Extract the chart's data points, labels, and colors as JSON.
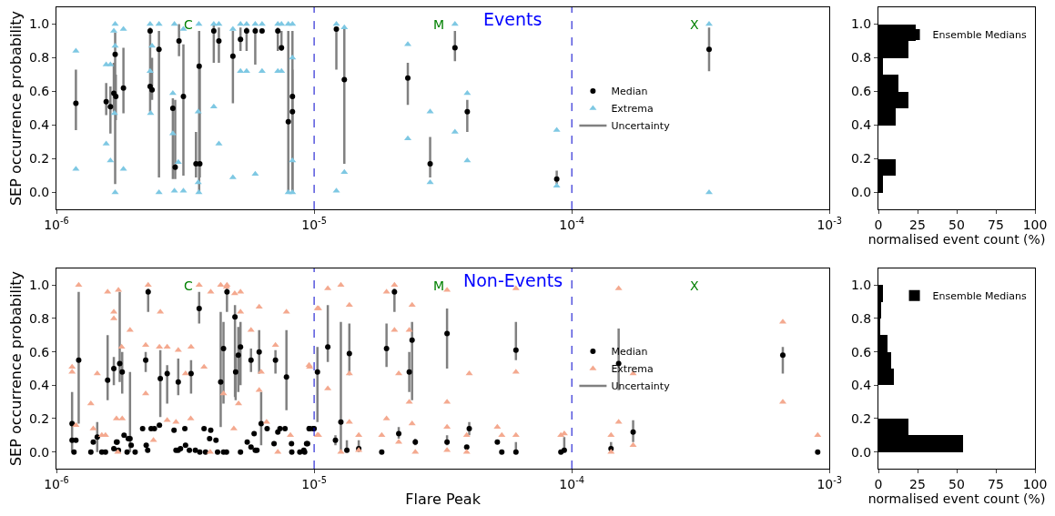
{
  "chart_data": [
    {
      "type": "scatter",
      "title": "Events",
      "ylabel": "SEP occurrence probability",
      "xlim": [
        1e-06,
        0.001
      ],
      "xticks": [
        {
          "value": 1e-06,
          "label": "10$^{-6}$"
        },
        {
          "value": 1e-05,
          "label": "10$^{-5}$"
        },
        {
          "value": 0.0001,
          "label": "10$^{-4}$"
        },
        {
          "value": 0.001,
          "label": "10$^{-3}$"
        }
      ],
      "log": "x",
      "ylim": [
        -0.1,
        1.1
      ],
      "yticks": [
        {
          "value": 0,
          "label": "0.0"
        },
        {
          "value": 0.2,
          "label": "0.2"
        },
        {
          "value": 0.4,
          "label": "0.4"
        },
        {
          "value": 0.6,
          "label": "0.6"
        },
        {
          "value": 0.8,
          "label": "0.8"
        },
        {
          "value": 1,
          "label": "1.0"
        }
      ],
      "legend": "right",
      "ref_lines": [
        {
          "axis": "x",
          "value": 1e-05,
          "color": "#0000cc",
          "line_style": "dashed"
        },
        {
          "axis": "x",
          "value": 0.0001,
          "color": "#0000cc",
          "line_style": "dashed"
        }
      ],
      "annotations": [
        "C",
        "M",
        "X"
      ],
      "series": [
        {
          "name": "Median",
          "color": "#000000",
          "marker": "circle",
          "x": [
            1.19e-06,
            1.56e-06,
            1.62e-06,
            1.67e-06,
            1.69e-06,
            1.7e-06,
            1.82e-06,
            2.31e-06,
            2.31e-06,
            2.35e-06,
            2.5e-06,
            2.83e-06,
            2.89e-06,
            2.99e-06,
            3.11e-06,
            3.48e-06,
            3.6e-06,
            3.58e-06,
            4.08e-06,
            4.27e-06,
            4.84e-06,
            5.18e-06,
            5.47e-06,
            5.91e-06,
            6.28e-06,
            7.23e-06,
            7.47e-06,
            7.94e-06,
            8.24e-06,
            8.24e-06,
            1.22e-05,
            1.31e-05,
            2.31e-05,
            2.82e-05,
            3.52e-05,
            3.93e-05,
            8.74e-05,
            0.000341
          ],
          "values": [
            0.53,
            0.54,
            0.51,
            0.59,
            0.82,
            0.57,
            0.62,
            0.96,
            0.63,
            0.61,
            0.85,
            0.5,
            0.15,
            0.9,
            0.57,
            0.17,
            0.17,
            0.75,
            0.96,
            0.9,
            0.81,
            0.91,
            0.96,
            0.96,
            0.96,
            0.96,
            0.86,
            0.42,
            0.57,
            0.48,
            0.97,
            0.67,
            0.68,
            0.17,
            0.86,
            0.48,
            0.08,
            0.85
          ],
          "errors": [
            [
              0.37,
              0.73
            ],
            [
              0.46,
              0.65
            ],
            [
              0.35,
              0.63
            ],
            [
              0.48,
              0.77
            ],
            [
              0.05,
              0.95
            ],
            [
              0.43,
              0.7
            ],
            [
              0.47,
              0.86
            ],
            [
              0.83,
              0.98
            ],
            [
              0.48,
              0.83
            ],
            [
              0.55,
              0.8
            ],
            [
              0.09,
              0.96
            ],
            [
              0.08,
              0.56
            ],
            [
              0.08,
              0.55
            ],
            [
              0.81,
              1.0
            ],
            [
              0.1,
              0.88
            ],
            [
              0.09,
              0.36
            ],
            [
              0.09,
              0.75
            ],
            [
              0.0,
              0.96
            ],
            [
              0.77,
              1.0
            ],
            [
              0.77,
              0.98
            ],
            [
              0.53,
              0.96
            ],
            [
              0.84,
              0.98
            ],
            [
              0.84,
              0.98
            ],
            [
              0.76,
              0.98
            ],
            null,
            [
              0.84,
              0.98
            ],
            [
              0.84,
              0.96
            ],
            [
              0.0,
              0.96
            ],
            [
              0.0,
              0.73
            ],
            [
              0.0,
              0.96
            ],
            [
              0.73,
              0.98
            ],
            [
              0.17,
              0.98
            ],
            [
              0.52,
              0.77
            ],
            [
              0.09,
              0.33
            ],
            [
              0.78,
              0.96
            ],
            [
              0.36,
              0.55
            ],
            [
              0.05,
              0.13
            ],
            [
              0.72,
              0.98
            ]
          ]
        },
        {
          "name": "Extrema",
          "color": "#7ec8e3",
          "marker": "triangle",
          "x": [
            1.19e-06,
            1.19e-06,
            1.56e-06,
            1.56e-06,
            1.62e-06,
            1.62e-06,
            1.69e-06,
            1.67e-06,
            1.69e-06,
            1.68e-06,
            1.69e-06,
            1.82e-06,
            1.82e-06,
            2.31e-06,
            2.35e-06,
            2.31e-06,
            2.32e-06,
            2.5e-06,
            2.5e-06,
            2.83e-06,
            2.83e-06,
            2.87e-06,
            2.97e-06,
            2.87e-06,
            3.11e-06,
            3.11e-06,
            3.57e-06,
            3.55e-06,
            3.55e-06,
            3.57e-06,
            4.08e-06,
            4.08e-06,
            4.27e-06,
            4.27e-06,
            4.84e-06,
            4.84e-06,
            5.18e-06,
            5.18e-06,
            5.47e-06,
            5.47e-06,
            5.91e-06,
            5.91e-06,
            6.28e-06,
            6.28e-06,
            7.23e-06,
            7.47e-06,
            7.23e-06,
            7.47e-06,
            7.94e-06,
            8.24e-06,
            8.24e-06,
            8.24e-06,
            7.94e-06,
            8.24e-06,
            1.22e-05,
            1.22e-05,
            1.31e-05,
            1.31e-05,
            2.31e-05,
            2.31e-05,
            2.82e-05,
            2.82e-05,
            3.52e-05,
            3.52e-05,
            3.93e-05,
            3.93e-05,
            8.74e-05,
            8.74e-05,
            0.000341,
            0.000341
          ],
          "values": [
            0.84,
            0.14,
            0.76,
            0.29,
            0.76,
            0.19,
            1.0,
            0.96,
            0.87,
            0.47,
            0.0,
            0.97,
            0.14,
            1.0,
            0.87,
            0.72,
            0.47,
            1.0,
            0.0,
            0.59,
            0.35,
            1.0,
            0.18,
            0.01,
            0.97,
            0.01,
            1.0,
            0.48,
            0.06,
            0.0,
            1.0,
            0.51,
            1.0,
            0.29,
            0.97,
            0.09,
            1.0,
            0.72,
            1.0,
            0.72,
            1.0,
            0.11,
            1.0,
            0.72,
            1.0,
            1.0,
            0.72,
            0.72,
            1.0,
            1.0,
            0.8,
            0.19,
            0.0,
            0.0,
            1.0,
            0.01,
            0.98,
            0.12,
            0.88,
            0.32,
            0.48,
            0.06,
            1.0,
            0.36,
            0.59,
            0.19,
            0.37,
            0.04,
            1.0,
            0.0
          ]
        },
        {
          "name": "Uncertainty",
          "type": "line",
          "color": "#808080"
        }
      ]
    },
    {
      "type": "histogram",
      "orientation": "horizontal",
      "xlabel": "normalised event count (%)",
      "bins": [
        0,
        0.1,
        0.2,
        0.3,
        0.4,
        0.5,
        0.6,
        0.7,
        0.8,
        0.9,
        1.0
      ],
      "xlim": [
        0,
        100
      ],
      "xticks": [
        0,
        25,
        50,
        75,
        100
      ],
      "ylim": [
        -0.1,
        1.1
      ],
      "yticks": [
        {
          "value": 0,
          "label": "0.0"
        },
        {
          "value": 0.2,
          "label": "0.2"
        },
        {
          "value": 0.4,
          "label": "0.4"
        },
        {
          "value": 0.6,
          "label": "0.6"
        },
        {
          "value": 0.8,
          "label": "0.8"
        },
        {
          "value": 1,
          "label": "1.0"
        }
      ],
      "legend": "top right",
      "series": [
        {
          "name": "Ensemble Medians",
          "color": "#000000",
          "values": [
            3,
            11,
            0,
            0,
            11,
            19,
            13,
            3,
            19,
            24
          ]
        }
      ]
    },
    {
      "type": "scatter",
      "title": "Non-Events",
      "ylabel": "SEP occurrence probability",
      "xlabel": "Flare Peak",
      "xlim": [
        1e-06,
        0.001
      ],
      "xticks": [
        {
          "value": 1e-06,
          "label": "10$^{-6}$"
        },
        {
          "value": 1e-05,
          "label": "10$^{-5}$"
        },
        {
          "value": 0.0001,
          "label": "10$^{-4}$"
        },
        {
          "value": 0.001,
          "label": "10$^{-3}$"
        }
      ],
      "log": "x",
      "ylim": [
        -0.1,
        1.1
      ],
      "yticks": [
        {
          "value": 0,
          "label": "0.0"
        },
        {
          "value": 0.2,
          "label": "0.2"
        },
        {
          "value": 0.4,
          "label": "0.4"
        },
        {
          "value": 0.6,
          "label": "0.6"
        },
        {
          "value": 0.8,
          "label": "0.8"
        },
        {
          "value": 1,
          "label": "1.0"
        }
      ],
      "legend": "right",
      "ref_lines": [
        {
          "axis": "x",
          "value": 1e-05,
          "color": "#0000cc",
          "line_style": "dashed"
        },
        {
          "axis": "x",
          "value": 0.0001,
          "color": "#0000cc",
          "line_style": "dashed"
        }
      ],
      "annotations": [
        "C",
        "M",
        "X"
      ],
      "series": [
        {
          "name": "Median",
          "color": "#000000",
          "marker": "circle",
          "x": [
            1.15e-06,
            1.15e-06,
            1.19e-06,
            1.17e-06,
            1.22e-06,
            1.36e-06,
            1.39e-06,
            1.44e-06,
            1.5e-06,
            1.55e-06,
            1.58e-06,
            1.67e-06,
            1.67e-06,
            1.71e-06,
            1.72e-06,
            1.74e-06,
            1.76e-06,
            1.8e-06,
            1.83e-06,
            1.9e-06,
            1.95e-06,
            1.88e-06,
            2.02e-06,
            1.93e-06,
            2.16e-06,
            2.22e-06,
            2.23e-06,
            2.26e-06,
            2.27e-06,
            2.33e-06,
            2.4e-06,
            2.51e-06,
            2.53e-06,
            2.69e-06,
            2.86e-06,
            2.91e-06,
            2.97e-06,
            3.03e-06,
            3.15e-06,
            3.17e-06,
            2.97e-06,
            3.28e-06,
            3.46e-06,
            3.6e-06,
            3.33e-06,
            3.58e-06,
            3.74e-06,
            3.79e-06,
            3.93e-06,
            3.97e-06,
            4.16e-06,
            4.22e-06,
            4.45e-06,
            4.57e-06,
            4.34e-06,
            4.45e-06,
            4.59e-06,
            4.93e-06,
            4.96e-06,
            5.08e-06,
            5.18e-06,
            5.18e-06,
            5.5e-06,
            5.69e-06,
            5.85e-06,
            5.91e-06,
            6e-06,
            5.69e-06,
            6.12e-06,
            6.23e-06,
            6.57e-06,
            6.99e-06,
            7.23e-06,
            7.37e-06,
            7.71e-06,
            8.17e-06,
            8.19e-06,
            7.08e-06,
            7.81e-06,
            8.8e-06,
            9.19e-06,
            9.43e-06,
            9.61e-06,
            1e-05,
            9.12e-06,
            9.35e-06,
            9.56e-06,
            9.91e-06,
            1.03e-05,
            1.13e-05,
            1.21e-05,
            1.27e-05,
            1.34e-05,
            1.37e-05,
            1.49e-05,
            1.83e-05,
            1.91e-05,
            2.05e-05,
            2.13e-05,
            2.34e-05,
            2.4e-05,
            2.47e-05,
            3.28e-05,
            3.28e-05,
            3.91e-05,
            4e-05,
            5.14e-05,
            5.35e-05,
            6.07e-05,
            6.07e-05,
            9.07e-05,
            9.35e-05,
            0.000142,
            0.000152,
            0.000173,
            0.000659,
            0.0009
          ],
          "values": [
            0.17,
            0.07,
            0.07,
            0.0,
            0.55,
            0.0,
            0.06,
            0.09,
            0.0,
            0.0,
            0.43,
            0.5,
            0.02,
            0.06,
            0.06,
            0.01,
            0.53,
            0.48,
            0.1,
            0.08,
            0.04,
            0.0,
            0.0,
            0.08,
            0.14,
            0.55,
            0.04,
            0.01,
            0.96,
            0.14,
            0.14,
            0.16,
            0.44,
            0.47,
            0.13,
            0.01,
            0.01,
            0.02,
            0.14,
            0.04,
            0.42,
            0.01,
            0.01,
            0.0,
            0.47,
            0.86,
            0.14,
            0.0,
            0.08,
            0.13,
            0.07,
            0.0,
            0.0,
            0.0,
            0.42,
            0.62,
            0.96,
            0.81,
            0.48,
            0.58,
            0.63,
            0.0,
            0.06,
            0.03,
            0.11,
            0.01,
            0.01,
            0.55,
            0.6,
            0.17,
            0.14,
            0.05,
            0.12,
            0.14,
            0.14,
            0.05,
            0.0,
            0.55,
            0.45,
            0.0,
            0.0,
            0.05,
            0.14,
            0.14,
            0.01,
            0.05,
            0.14,
            0.14,
            0.48,
            0.63,
            0.07,
            0.18,
            0.01,
            0.59,
            0.02,
            0.0,
            0.62,
            0.96,
            0.11,
            0.48,
            0.67,
            0.06,
            0.71,
            0.06,
            0.03,
            0.14,
            0.06,
            0.0,
            0.61,
            0.0,
            0.0,
            0.01,
            0.02,
            0.53,
            0.12,
            0.58,
            0.0
          ],
          "errors": [
            [
              0.0,
              0.36
            ],
            null,
            null,
            null,
            [
              0.17,
              0.96
            ],
            null,
            null,
            [
              0.0,
              0.18
            ],
            null,
            null,
            [
              0.31,
              0.7
            ],
            [
              0.4,
              0.57
            ],
            null,
            null,
            null,
            null,
            [
              0.42,
              0.96
            ],
            [
              0.35,
              0.6
            ],
            null,
            null,
            null,
            null,
            null,
            [
              0.0,
              0.48
            ],
            null,
            [
              0.48,
              0.6
            ],
            null,
            null,
            [
              0.84,
              0.98
            ],
            null,
            null,
            null,
            [
              0.21,
              0.61
            ],
            [
              0.29,
              0.52
            ],
            null,
            null,
            null,
            null,
            null,
            null,
            [
              0.34,
              0.56
            ],
            null,
            null,
            null,
            [
              0.35,
              0.55
            ],
            [
              0.77,
              0.96
            ],
            null,
            null,
            null,
            null,
            null,
            null,
            null,
            null,
            [
              0.15,
              0.84
            ],
            [
              0.29,
              0.78
            ],
            [
              0.84,
              0.98
            ],
            [
              0.33,
              0.88
            ],
            [
              0.31,
              0.58
            ],
            [
              0.36,
              0.75
            ],
            [
              0.4,
              0.78
            ],
            null,
            null,
            null,
            null,
            null,
            null,
            [
              0.48,
              0.62
            ],
            [
              0.47,
              0.73
            ],
            [
              0.04,
              0.36
            ],
            null,
            null,
            null,
            null,
            null,
            null,
            null,
            [
              0.47,
              0.61
            ],
            [
              0.25,
              0.73
            ],
            null,
            null,
            null,
            null,
            null,
            null,
            null,
            null,
            null,
            [
              0.18,
              0.63
            ],
            [
              0.54,
              0.88
            ],
            [
              0.04,
              0.1
            ],
            [
              0.0,
              0.78
            ],
            [
              0.0,
              0.07
            ],
            [
              0.46,
              0.77
            ],
            [
              0.0,
              0.07
            ],
            null,
            [
              0.51,
              0.77
            ],
            [
              0.84,
              0.98
            ],
            [
              0.08,
              0.15
            ],
            [
              0.36,
              0.6
            ],
            [
              0.31,
              0.78
            ],
            [
              0.04,
              0.08
            ],
            [
              0.5,
              0.86
            ],
            [
              0.04,
              0.1
            ],
            null,
            [
              0.1,
              0.18
            ],
            null,
            null,
            [
              0.55,
              0.78
            ],
            [
              0.0,
              0.06
            ],
            null,
            [
              0.0,
              0.09
            ],
            [
              0.0,
              0.06
            ],
            [
              0.37,
              0.74
            ],
            [
              0.06,
              0.19
            ],
            [
              0.47,
              0.63
            ],
            null
          ]
        },
        {
          "name": "Extrema",
          "color": "#f4a98f",
          "marker": "triangle",
          "x": [
            1.15e-06,
            1.15e-06,
            1.19e-06,
            1.22e-06,
            1.36e-06,
            1.39e-06,
            1.44e-06,
            1.5e-06,
            1.55e-06,
            1.58e-06,
            1.67e-06,
            1.67e-06,
            1.74e-06,
            1.79e-06,
            1.71e-06,
            1.8e-06,
            1.93e-06,
            2.22e-06,
            2.27e-06,
            2.22e-06,
            2.53e-06,
            2.51e-06,
            2.69e-06,
            2.69e-06,
            2.97e-06,
            3.17e-06,
            3.33e-06,
            3.58e-06,
            3.74e-06,
            3.97e-06,
            4.34e-06,
            4.45e-06,
            4.59e-06,
            4.57e-06,
            4.92e-06,
            5.18e-06,
            5.18e-06,
            5.09e-06,
            5.69e-06,
            6.12e-06,
            6.12e-06,
            6.23e-06,
            7.08e-06,
            7.81e-06,
            7.23e-06,
            9.61e-06,
            1.04e-05,
            1.04e-05,
            1.73e-06,
            2.38e-06,
            2.91e-06,
            3.32e-06,
            3.95e-06,
            4.88e-06,
            6.54e-06,
            8.09e-06,
            9.56e-06,
            1.03e-05,
            1.13e-05,
            1.13e-05,
            1.03e-05,
            1.27e-05,
            1.27e-05,
            1.37e-05,
            1.37e-05,
            1.37e-05,
            1.49e-05,
            1.49e-05,
            1.83e-05,
            1.91e-05,
            1.91e-05,
            2.05e-05,
            2.05e-05,
            2.13e-05,
            2.13e-05,
            2.34e-05,
            2.34e-05,
            2.4e-05,
            2.4e-05,
            2.47e-05,
            3.28e-05,
            3.28e-05,
            3.28e-05,
            3.28e-05,
            3.91e-05,
            3.91e-05,
            4e-05,
            5.14e-05,
            5.35e-05,
            6.07e-05,
            6.07e-05,
            6.07e-05,
            9.07e-05,
            9.35e-05,
            0.000142,
            0.000142,
            0.000152,
            0.000152,
            0.000173,
            0.000173,
            0.000659,
            0.000659,
            0.0009
          ],
          "values": [
            0.51,
            0.48,
            0.16,
            1.0,
            0.29,
            0.14,
            0.47,
            0.1,
            0.1,
            0.96,
            0.84,
            0.8,
            0.97,
            0.63,
            0.2,
            0.2,
            0.73,
            0.64,
            1.0,
            0.35,
            0.84,
            0.63,
            0.63,
            0.19,
            0.61,
            0.47,
            0.63,
            1.0,
            0.51,
            0.96,
            1.0,
            0.35,
            1.0,
            0.99,
            0.95,
            0.96,
            0.84,
            0.29,
            0.73,
            0.87,
            0.37,
            0.48,
            0.64,
            0.84,
            0.0,
            0.51,
            0.86,
            0.1,
            0.0,
            0.07,
            0.18,
            0.2,
            0.0,
            0.14,
            0.18,
            0.1,
            0.52,
            0.86,
            0.98,
            0.38,
            0.1,
            1.0,
            0.0,
            0.88,
            0.47,
            0.18,
            0.1,
            0.01,
            0.1,
            0.96,
            0.2,
            1.0,
            0.73,
            0.47,
            0.06,
            0.73,
            0.3,
            0.88,
            0.17,
            0.0,
            0.97,
            0.3,
            0.15,
            0.01,
            0.1,
            0.0,
            0.47,
            0.15,
            0.1,
            0.98,
            0.48,
            0.1,
            0.1,
            0.11,
            0.1,
            0.0,
            0.98,
            0.18,
            0.47,
            0.04,
            0.78,
            0.3,
            0.1
          ]
        },
        {
          "name": "Uncertainty",
          "type": "line",
          "color": "#808080"
        }
      ]
    },
    {
      "type": "histogram",
      "orientation": "horizontal",
      "xlabel": "normalised event count (%)",
      "bins": [
        0,
        0.1,
        0.2,
        0.3,
        0.4,
        0.5,
        0.6,
        0.7,
        0.8,
        0.9,
        1.0
      ],
      "xlim": [
        0,
        100
      ],
      "xticks": [
        0,
        25,
        50,
        75,
        100
      ],
      "ylim": [
        -0.1,
        1.1
      ],
      "yticks": [
        {
          "value": 0,
          "label": "0.0"
        },
        {
          "value": 0.2,
          "label": "0.2"
        },
        {
          "value": 0.4,
          "label": "0.4"
        },
        {
          "value": 0.6,
          "label": "0.6"
        },
        {
          "value": 0.8,
          "label": "0.8"
        },
        {
          "value": 1,
          "label": "1.0"
        }
      ],
      "legend": "top right",
      "series": [
        {
          "name": "Ensemble Medians",
          "color": "#000000",
          "values": [
            54,
            19,
            0,
            0,
            10,
            8,
            6,
            1,
            2,
            3
          ]
        }
      ]
    }
  ]
}
